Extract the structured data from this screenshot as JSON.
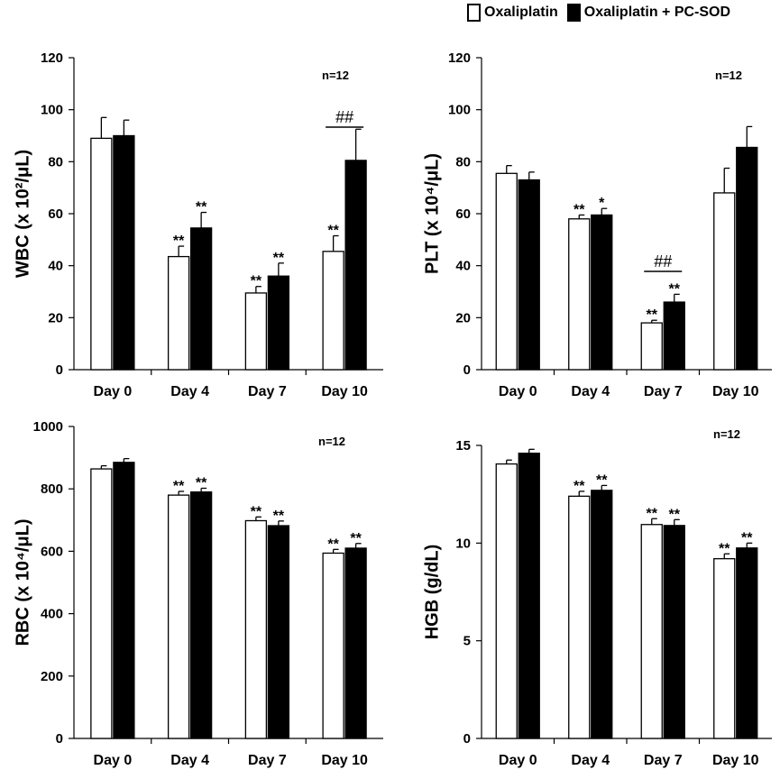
{
  "legend": {
    "series": [
      {
        "name": "Oxaliplatin",
        "color": "#ffffff"
      },
      {
        "name": "Oxaliplatin + PC-SOD",
        "color": "#000000"
      }
    ]
  },
  "chart_data": [
    {
      "type": "bar",
      "panel": "WBC",
      "ylabel": "WBC (x 10²/μL)",
      "ylim": [
        0,
        120
      ],
      "yticks": [
        0,
        20,
        40,
        60,
        80,
        100,
        120
      ],
      "categories": [
        "Day 0",
        "Day 4",
        "Day 7",
        "Day 10"
      ],
      "n_label": "n=12",
      "series": [
        {
          "name": "Oxaliplatin",
          "values": [
            89,
            43.5,
            29.5,
            45.5
          ],
          "errors": [
            8,
            4,
            2.5,
            6
          ],
          "annotations": [
            "",
            "**",
            "**",
            "**"
          ]
        },
        {
          "name": "Oxaliplatin + PC-SOD",
          "values": [
            90,
            54.5,
            36,
            80.5
          ],
          "errors": [
            6,
            6,
            5,
            12
          ],
          "annotations": [
            "",
            "**",
            "**",
            ""
          ]
        }
      ],
      "comparisons": [
        {
          "category": "Day 10",
          "label": "##"
        }
      ]
    },
    {
      "type": "bar",
      "panel": "PLT",
      "ylabel": "PLT (x 10⁴/μL)",
      "ylim": [
        0,
        120
      ],
      "yticks": [
        0,
        20,
        40,
        60,
        80,
        100,
        120
      ],
      "categories": [
        "Day 0",
        "Day 4",
        "Day 7",
        "Day 10"
      ],
      "n_label": "n=12",
      "series": [
        {
          "name": "Oxaliplatin",
          "values": [
            75.5,
            58,
            18,
            68
          ],
          "errors": [
            3,
            1.5,
            1,
            9.5
          ],
          "annotations": [
            "",
            "**",
            "**",
            ""
          ]
        },
        {
          "name": "Oxaliplatin + PC-SOD",
          "values": [
            73,
            59.5,
            26,
            85.5
          ],
          "errors": [
            3,
            2.5,
            3,
            8
          ],
          "annotations": [
            "",
            "*",
            "**",
            ""
          ]
        }
      ],
      "comparisons": [
        {
          "category": "Day 7",
          "label": "##"
        }
      ]
    },
    {
      "type": "bar",
      "panel": "RBC",
      "ylabel": "RBC (x 10⁴/μL)",
      "ylim": [
        0,
        1000
      ],
      "yticks": [
        0,
        200,
        400,
        600,
        800,
        1000
      ],
      "categories": [
        "Day 0",
        "Day 4",
        "Day 7",
        "Day 10"
      ],
      "n_label": "n=12",
      "series": [
        {
          "name": "Oxaliplatin",
          "values": [
            864,
            780,
            698,
            594
          ],
          "errors": [
            10,
            12,
            12,
            12
          ],
          "annotations": [
            "",
            "**",
            "**",
            "**"
          ]
        },
        {
          "name": "Oxaliplatin + PC-SOD",
          "values": [
            885,
            790,
            682,
            610
          ],
          "errors": [
            12,
            12,
            15,
            15
          ],
          "annotations": [
            "",
            "**",
            "**",
            "**"
          ]
        }
      ],
      "comparisons": []
    },
    {
      "type": "bar",
      "panel": "HGB",
      "ylabel": "HGB (g/dL)",
      "ylim": [
        0,
        16
      ],
      "yticks": [
        0,
        5,
        10,
        15
      ],
      "categories": [
        "Day 0",
        "Day 4",
        "Day 7",
        "Day 10"
      ],
      "n_label": "n=12",
      "series": [
        {
          "name": "Oxaliplatin",
          "values": [
            14.05,
            12.4,
            10.95,
            9.2
          ],
          "errors": [
            0.2,
            0.25,
            0.3,
            0.25
          ],
          "annotations": [
            "",
            "**",
            "**",
            "**"
          ]
        },
        {
          "name": "Oxaliplatin + PC-SOD",
          "values": [
            14.6,
            12.7,
            10.9,
            9.75
          ],
          "errors": [
            0.2,
            0.25,
            0.3,
            0.25
          ],
          "annotations": [
            "",
            "**",
            "**",
            "**"
          ]
        }
      ],
      "comparisons": []
    }
  ]
}
